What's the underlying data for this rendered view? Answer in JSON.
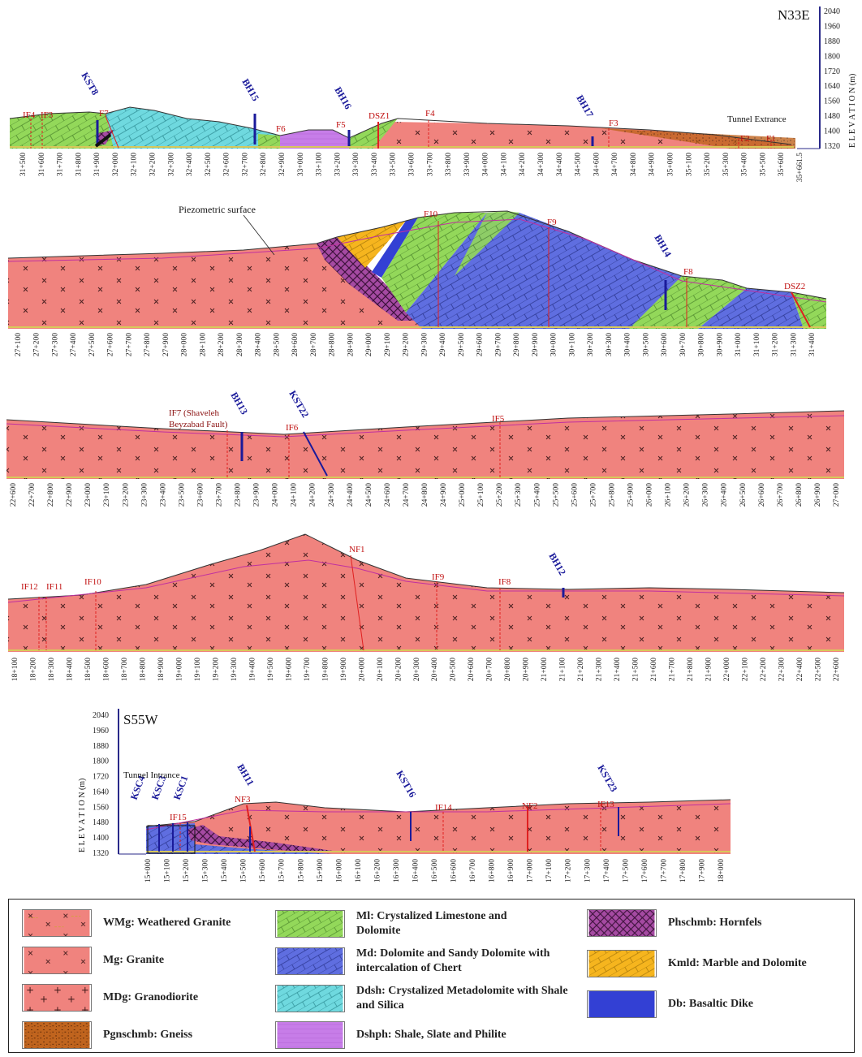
{
  "orientation": {
    "top": "N33E",
    "bottom": "S55W"
  },
  "elevation_axis": {
    "label": "E L E V A T I O N (m)",
    "ticks": [
      "2040",
      "1960",
      "1880",
      "1800",
      "1720",
      "1640",
      "1560",
      "1480",
      "1400",
      "1320"
    ]
  },
  "section1": {
    "labels": [
      "IF4",
      "IF3",
      "KST8",
      "F7",
      "BH15",
      "F6",
      "BH16",
      "F5",
      "DSZ1",
      "F4",
      "BH17",
      "F3",
      "F2",
      "F1"
    ],
    "note": "Tunnel Extrance",
    "chainages": [
      "31+500",
      "31+600",
      "31+700",
      "31+800",
      "31+900",
      "32+000",
      "32+100",
      "32+200",
      "32+300",
      "32+400",
      "32+500",
      "32+600",
      "32+700",
      "32+800",
      "32+900",
      "33+000",
      "33+100",
      "33+200",
      "33+300",
      "33+400",
      "33+500",
      "33+600",
      "33+700",
      "33+800",
      "33+900",
      "34+000",
      "34+100",
      "34+200",
      "34+300",
      "34+400",
      "34+500",
      "34+600",
      "34+700",
      "34+800",
      "34+900",
      "35+000",
      "35+100",
      "35+200",
      "35+300",
      "35+400",
      "35+500",
      "35+600",
      "35+661.5"
    ]
  },
  "section2": {
    "piezo": "Piezometric surface",
    "labels": [
      "F10",
      "F9",
      "BH14",
      "F8",
      "DSZ2"
    ],
    "chainages": [
      "27+100",
      "27+200",
      "27+300",
      "27+400",
      "27+500",
      "27+600",
      "27+700",
      "27+800",
      "27+900",
      "28+000",
      "28+100",
      "28+200",
      "28+300",
      "28+400",
      "28+500",
      "28+600",
      "28+700",
      "28+800",
      "28+900",
      "29+000",
      "29+100",
      "29+200",
      "29+300",
      "29+400",
      "29+500",
      "29+600",
      "29+700",
      "29+800",
      "29+900",
      "30+000",
      "30+100",
      "30+200",
      "30+300",
      "30+400",
      "30+500",
      "30+600",
      "30+700",
      "30+800",
      "30+900",
      "31+000",
      "31+100",
      "31+200",
      "31+300",
      "31+400"
    ]
  },
  "section3": {
    "if7_line1": "IF7 (Shaveleh",
    "if7_line2": "Beyzabad Fault)",
    "labels": [
      "BH13",
      "KST22",
      "IF6",
      "IF5"
    ],
    "chainages": [
      "22+600",
      "22+700",
      "22+800",
      "22+900",
      "23+000",
      "23+100",
      "23+200",
      "23+300",
      "23+400",
      "23+500",
      "23+600",
      "23+700",
      "23+800",
      "23+900",
      "24+000",
      "24+100",
      "24+200",
      "24+300",
      "24+400",
      "24+500",
      "24+600",
      "24+700",
      "24+800",
      "24+900",
      "25+000",
      "25+100",
      "25+200",
      "25+300",
      "25+400",
      "25+500",
      "25+600",
      "25+700",
      "25+800",
      "25+900",
      "26+000",
      "26+100",
      "26+200",
      "26+300",
      "26+400",
      "26+500",
      "26+600",
      "26+700",
      "26+800",
      "26+900",
      "27+000"
    ]
  },
  "section4": {
    "labels": [
      "IF12",
      "IF11",
      "IF10",
      "NF1",
      "IF9",
      "IF8",
      "BH12"
    ],
    "chainages": [
      "18+100",
      "18+200",
      "18+300",
      "18+400",
      "18+500",
      "18+600",
      "18+700",
      "18+800",
      "18+900",
      "19+000",
      "19+100",
      "19+200",
      "19+300",
      "19+400",
      "19+500",
      "19+600",
      "19+700",
      "19+800",
      "19+900",
      "20+000",
      "20+100",
      "20+200",
      "20+300",
      "20+400",
      "20+500",
      "20+600",
      "20+700",
      "20+800",
      "20+900",
      "21+000",
      "21+100",
      "21+200",
      "21+300",
      "21+400",
      "21+500",
      "21+600",
      "21+700",
      "21+800",
      "21+900",
      "22+000",
      "22+100",
      "22+200",
      "22+300",
      "22+400",
      "22+500",
      "22+600"
    ]
  },
  "section5": {
    "note": "Tunnel Intrance",
    "labels": [
      "KSC4",
      "KSC3",
      "KSC1",
      "IF15",
      "BH11",
      "NF3",
      "KST16",
      "IF14",
      "NF2",
      "IF13",
      "KST23"
    ],
    "chainages": [
      "15+000",
      "15+100",
      "15+200",
      "15+300",
      "15+400",
      "15+500",
      "15+600",
      "15+700",
      "15+800",
      "15+900",
      "16+000",
      "16+100",
      "16+200",
      "16+300",
      "16+400",
      "16+500",
      "16+600",
      "16+700",
      "16+800",
      "16+900",
      "17+000",
      "17+100",
      "17+200",
      "17+300",
      "17+400",
      "17+500",
      "17+600",
      "17+700",
      "17+800",
      "17+900",
      "18+000"
    ]
  },
  "legend": [
    {
      "code": "WMg",
      "text": "WMg: Weathered Granite",
      "color": "#f0837e"
    },
    {
      "code": "Mg",
      "text": "Mg: Granite",
      "color": "#f0837e"
    },
    {
      "code": "MDg",
      "text": "MDg: Granodiorite",
      "color": "#f0837e"
    },
    {
      "code": "Pgnschmb",
      "text": "Pgnschmb: Gneiss",
      "color": "#c0641e"
    },
    {
      "code": "Ml",
      "text": "Ml: Crystalized Limestone and Dolomite",
      "color": "#93d85a"
    },
    {
      "code": "Md",
      "text": "Md: Dolomite and Sandy Dolomite with intercalation of Chert",
      "color": "#5f6ee0"
    },
    {
      "code": "Ddsh",
      "text": "Ddsh: Crystalized Metadolomite with Shale and Silica",
      "color": "#6fd9df"
    },
    {
      "code": "Dshph",
      "text": "Dshph: Shale, Slate and Philite",
      "color": "#c77de8"
    },
    {
      "code": "Phschmb",
      "text": "Phschmb: Hornfels",
      "color": "#a54aa2"
    },
    {
      "code": "Kmld",
      "text": "Kmld: Marble and Dolomite",
      "color": "#f6b51e"
    },
    {
      "code": "Db",
      "text": "Db: Basaltic Dike",
      "color": "#3340d4"
    }
  ]
}
